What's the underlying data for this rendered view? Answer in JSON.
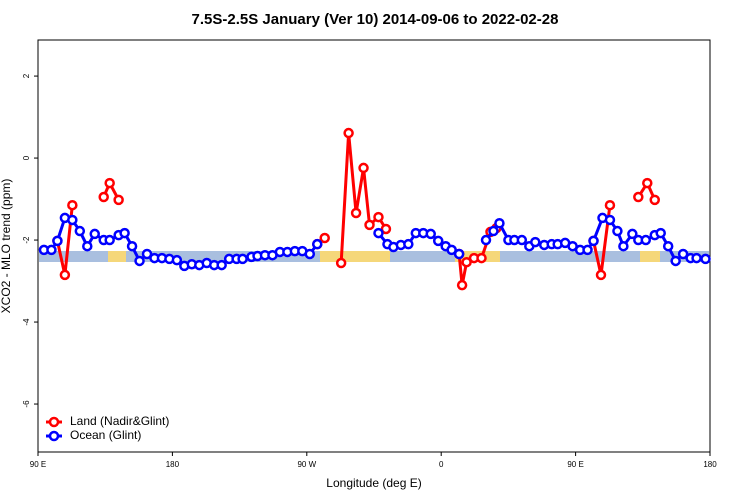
{
  "chart_data": {
    "type": "line",
    "title": "7.5S-2.5S January (Ver 10)   2014-09-06 to 2022-02-28",
    "x_label": "Longitude (deg E)",
    "y_label": "XCO2 - MLO trend (ppm)",
    "xlim": [
      90,
      540
    ],
    "ylim": [
      -7.17,
      2.88
    ],
    "xticks": [
      {
        "value": 90,
        "label": "90 E"
      },
      {
        "value": 180,
        "label": "180"
      },
      {
        "value": 270,
        "label": "90 W"
      },
      {
        "value": 360,
        "label": "0"
      },
      {
        "value": 450,
        "label": "90 E"
      },
      {
        "value": 540,
        "label": "180"
      }
    ],
    "yticks": [
      -6,
      -4,
      -2,
      0,
      2
    ],
    "legend": "bottom-left",
    "series": [
      {
        "name": "Land (Nadir&Glint)",
        "color": "#ff0000",
        "x": [
          103,
          108,
          113,
          null,
          134,
          138,
          144,
          null,
          277,
          282,
          null,
          293,
          298,
          303,
          308,
          312,
          318,
          323,
          null,
          372,
          374,
          377,
          382,
          387,
          393,
          397,
          null,
          462,
          467,
          473,
          null,
          492,
          498,
          503
        ],
        "values": [
          -2.02,
          -2.85,
          -1.15,
          null,
          -0.95,
          -0.61,
          -1.02,
          null,
          -2.1,
          -1.95,
          null,
          -2.56,
          0.61,
          -1.34,
          -0.24,
          -1.63,
          -1.44,
          -1.73,
          null,
          -2.34,
          -3.1,
          -2.54,
          -2.44,
          -2.44,
          -1.8,
          -1.71,
          null,
          -2.02,
          -2.85,
          -1.15,
          null,
          -0.95,
          -0.61,
          -1.02
        ]
      },
      {
        "name": "Ocean (Glint)",
        "color": "#0000ff",
        "x": [
          94,
          99,
          103,
          108,
          113,
          118,
          123,
          128,
          134,
          138,
          144,
          148,
          153,
          158,
          163,
          168,
          173,
          178,
          183,
          188,
          193,
          198,
          203,
          208,
          213,
          218,
          223,
          227,
          233,
          237,
          242,
          247,
          252,
          257,
          262,
          267,
          272,
          277,
          null,
          318,
          324,
          328,
          333,
          338,
          343,
          348,
          353,
          358,
          363,
          367,
          372,
          null,
          390,
          395,
          399,
          405,
          409,
          414,
          419,
          423,
          429,
          434,
          438,
          443,
          448,
          453,
          458,
          462,
          468,
          473,
          478,
          482,
          488,
          492,
          497,
          503,
          507,
          512,
          517,
          522,
          527,
          531,
          537
        ],
        "values": [
          -2.24,
          -2.24,
          -2.02,
          -1.46,
          -1.51,
          -1.78,
          -2.15,
          -1.85,
          -2.0,
          -2.0,
          -1.88,
          -1.83,
          -2.15,
          -2.51,
          -2.34,
          -2.44,
          -2.44,
          -2.46,
          -2.49,
          -2.63,
          -2.59,
          -2.61,
          -2.56,
          -2.61,
          -2.61,
          -2.46,
          -2.46,
          -2.46,
          -2.41,
          -2.39,
          -2.37,
          -2.37,
          -2.29,
          -2.29,
          -2.27,
          -2.27,
          -2.34,
          -2.1,
          null,
          -1.83,
          -2.1,
          -2.17,
          -2.12,
          -2.1,
          -1.83,
          -1.83,
          -1.85,
          -2.02,
          -2.15,
          -2.24,
          -2.34,
          null,
          -2.0,
          -1.78,
          -1.59,
          -2.0,
          -2.0,
          -2.0,
          -2.15,
          -2.05,
          -2.12,
          -2.1,
          -2.1,
          -2.07,
          -2.15,
          -2.24,
          -2.24,
          -2.02,
          -1.46,
          -1.51,
          -1.78,
          -2.15,
          -1.85,
          -2.0,
          -2.0,
          -1.88,
          -1.83,
          -2.15,
          -2.51,
          -2.34,
          -2.44,
          -2.44,
          -2.46
        ]
      }
    ]
  }
}
